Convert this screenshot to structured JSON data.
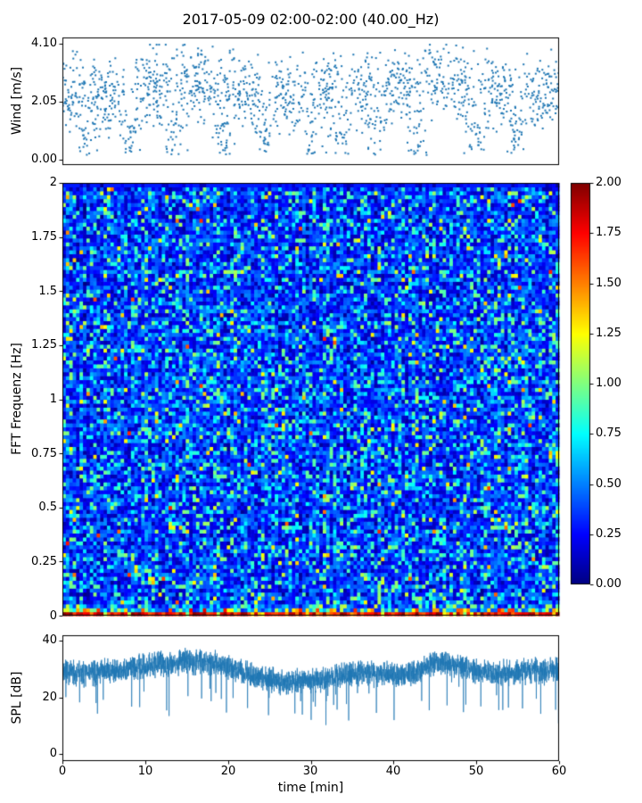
{
  "figure": {
    "title": "2017-05-09 02:00-02:00 (40.00_Hz)",
    "xlabel": "time [min]",
    "background_color": "#ffffff",
    "series_color": "#1f77b4"
  },
  "chart_data": [
    {
      "id": "wind",
      "type": "scatter",
      "ylabel": "Wind [m/s]",
      "ylim": [
        0.0,
        4.1
      ],
      "yticks": [
        0.0,
        2.05,
        4.1
      ],
      "ytick_labels": [
        "0.00",
        "2.05",
        "4.10"
      ],
      "xlim": [
        0,
        60
      ],
      "color": "#1f77b4",
      "points_per_minute": 28,
      "value_range_observed": [
        0.1,
        4.05
      ],
      "trend": {
        "x": [
          0,
          5,
          10,
          15,
          20,
          25,
          30,
          35,
          40,
          45,
          50,
          55,
          60
        ],
        "mean": [
          2.4,
          2.1,
          2.6,
          2.7,
          2.4,
          2.3,
          2.2,
          2.3,
          2.5,
          2.8,
          2.6,
          2.2,
          2.4
        ]
      },
      "spread": 0.8,
      "low_wind_cluster_minutes": [
        3,
        8,
        13.5,
        19.5,
        24.5,
        30,
        34,
        38,
        43,
        50,
        55
      ]
    },
    {
      "id": "spectrogram",
      "type": "heatmap",
      "ylabel": "FFT Frequenz [Hz]",
      "ylim": [
        0,
        2
      ],
      "yticks": [
        0,
        0.25,
        0.5,
        0.75,
        1,
        1.25,
        1.5,
        1.75,
        2
      ],
      "ytick_labels": [
        "0",
        "0.25",
        "0.5",
        "0.75",
        "1",
        "1.25",
        "1.5",
        "1.75",
        "2"
      ],
      "xlim": [
        0,
        60
      ],
      "colormap": "jet",
      "clim": [
        0.0,
        2.0
      ],
      "colorbar": {
        "ticks": [
          2.0,
          1.75,
          1.5,
          1.25,
          1.0,
          0.75,
          0.5,
          0.25,
          0.0
        ],
        "tick_labels": [
          "2.00",
          "1.75",
          "1.50",
          "1.25",
          "1.00",
          "0.75",
          "0.50",
          "0.25",
          "0.00"
        ]
      },
      "pattern": {
        "rows": 110,
        "cols": 145,
        "background_value_range": [
          0.08,
          0.56
        ],
        "speckle_value_range": [
          0.6,
          1.05
        ],
        "speckle_fraction": 0.17,
        "rare_high_value_range": [
          1.0,
          1.7
        ],
        "low_frequency_band": "values 1.0-2.0 (orange to dark red) concentrated below ~0.05 Hz along the bottom edge"
      }
    },
    {
      "id": "spl",
      "type": "line",
      "ylabel": "SPL [dB]",
      "ylim": [
        0,
        42
      ],
      "yticks": [
        0,
        20,
        40
      ],
      "ytick_labels": [
        "0",
        "20",
        "40"
      ],
      "xticks": [
        0,
        10,
        20,
        30,
        40,
        50,
        60
      ],
      "xtick_labels": [
        "0",
        "10",
        "20",
        "30",
        "40",
        "50",
        "60"
      ],
      "color": "#1f77b4",
      "band_halfwidth_db": 4.5,
      "downward_spike_min_db": 6,
      "trend": {
        "x": [
          0,
          3,
          6,
          9,
          12,
          15,
          18,
          21,
          24,
          27,
          30,
          33,
          36,
          39,
          42,
          45,
          48,
          51,
          54,
          57,
          60
        ],
        "mean": [
          29,
          28.5,
          29.5,
          31,
          32,
          33,
          32.5,
          30,
          27,
          25.5,
          26,
          27.5,
          29,
          28,
          28.5,
          32.5,
          31,
          29,
          28.5,
          29.5,
          30
        ]
      }
    }
  ]
}
